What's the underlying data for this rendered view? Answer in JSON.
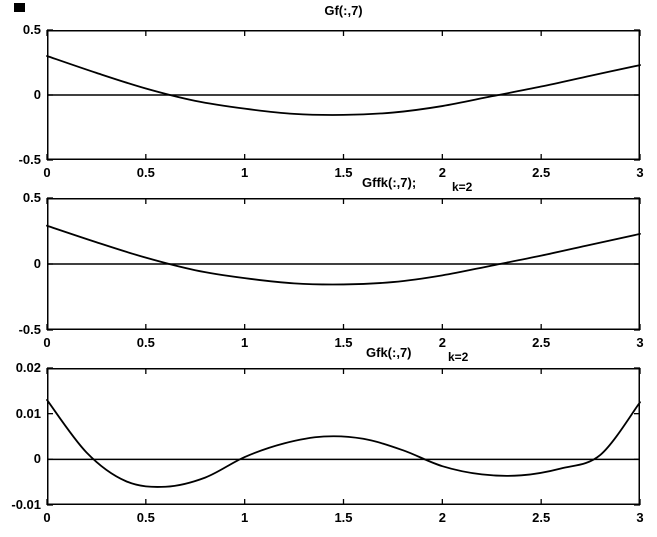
{
  "figure": {
    "background": "#ffffff",
    "line_color": "#000000"
  },
  "chart_data": [
    {
      "type": "line",
      "title": "Gf(:,7)",
      "annotation": "",
      "xlim": [
        0,
        3
      ],
      "ylim": [
        -0.5,
        0.5
      ],
      "xticks": [
        0,
        0.5,
        1,
        1.5,
        2,
        2.5,
        3
      ],
      "xtick_labels": [
        "0",
        "0.5",
        "1",
        "1.5",
        "2",
        "2.5",
        "3"
      ],
      "yticks": [
        0.5,
        0,
        -0.5
      ],
      "ytick_labels": [
        "0.5",
        "0",
        "-0.5"
      ],
      "zero_line": true,
      "grid": false,
      "legend": "none",
      "x": [
        0,
        0.25,
        0.5,
        0.75,
        1.0,
        1.25,
        1.5,
        1.75,
        2.0,
        2.25,
        2.5,
        2.75,
        3.0
      ],
      "y": [
        0.3,
        0.17,
        0.05,
        -0.045,
        -0.105,
        -0.145,
        -0.153,
        -0.135,
        -0.085,
        -0.01,
        0.065,
        0.148,
        0.23
      ]
    },
    {
      "type": "line",
      "title": "Gffk(:,7);",
      "annotation": "k=2",
      "xlim": [
        0,
        3
      ],
      "ylim": [
        -0.5,
        0.5
      ],
      "xticks": [
        0,
        0.5,
        1,
        1.5,
        2,
        2.5,
        3
      ],
      "xtick_labels": [
        "0",
        "0.5",
        "1",
        "1.5",
        "2",
        "2.5",
        "3"
      ],
      "yticks": [
        0.5,
        0,
        -0.5
      ],
      "ytick_labels": [
        "0.5",
        "0",
        "-0.5"
      ],
      "zero_line": true,
      "grid": false,
      "legend": "none",
      "x": [
        0,
        0.25,
        0.5,
        0.75,
        1.0,
        1.25,
        1.5,
        1.75,
        2.0,
        2.25,
        2.5,
        2.75,
        3.0
      ],
      "y": [
        0.29,
        0.165,
        0.048,
        -0.047,
        -0.107,
        -0.147,
        -0.155,
        -0.137,
        -0.086,
        -0.012,
        0.063,
        0.146,
        0.228
      ]
    },
    {
      "type": "line",
      "title": "Gfk(:,7)",
      "annotation": "k=2",
      "xlim": [
        0,
        3
      ],
      "ylim": [
        -0.01,
        0.02
      ],
      "xticks": [
        0,
        0.5,
        1,
        1.5,
        2,
        2.5,
        3
      ],
      "xtick_labels": [
        "0",
        "0.5",
        "1",
        "1.5",
        "2",
        "2.5",
        "3"
      ],
      "yticks": [
        0.02,
        0.01,
        0,
        -0.01
      ],
      "ytick_labels": [
        "0.02",
        "0.01",
        "0",
        "-0.01"
      ],
      "zero_line": true,
      "grid": false,
      "legend": "none",
      "x": [
        0,
        0.2,
        0.4,
        0.6,
        0.8,
        1.0,
        1.2,
        1.4,
        1.6,
        1.8,
        2.0,
        2.2,
        2.4,
        2.6,
        2.8,
        3.0
      ],
      "y": [
        0.013,
        0.0015,
        -0.0048,
        -0.006,
        -0.004,
        0.0005,
        0.0035,
        0.005,
        0.0045,
        0.002,
        -0.0015,
        -0.0033,
        -0.0035,
        -0.002,
        0.001,
        0.0125
      ]
    }
  ]
}
